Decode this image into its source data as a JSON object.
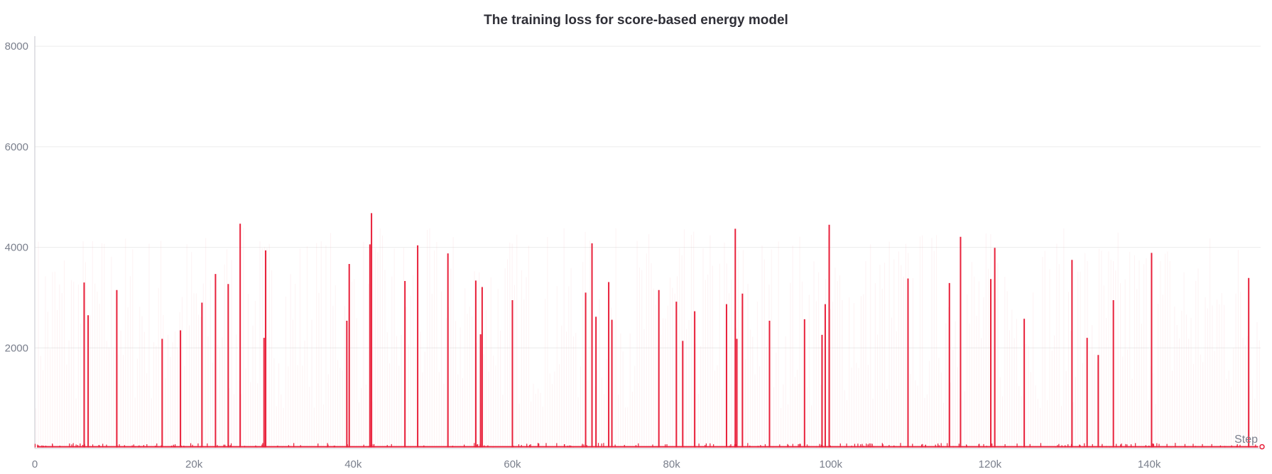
{
  "colors": {
    "series": "#e8203a",
    "grid": "#ececec",
    "axis": "#cfcfd4",
    "tick_text": "#7a7f8c",
    "title": "#2f2f37"
  },
  "chart_data": {
    "type": "line",
    "title": "The training loss for score-based energy model",
    "xlabel": "Step",
    "ylabel": "",
    "xlim": [
      0,
      154000
    ],
    "ylim": [
      0,
      8200
    ],
    "x_ticks": [
      0,
      20000,
      40000,
      60000,
      80000,
      100000,
      120000,
      140000
    ],
    "x_tick_labels": [
      "0",
      "20k",
      "40k",
      "60k",
      "80k",
      "100k",
      "120k",
      "140k"
    ],
    "y_ticks": [
      2000,
      4000,
      6000,
      8000
    ],
    "y_tick_labels": [
      "2000",
      "4000",
      "6000",
      "8000"
    ],
    "grid": true,
    "legend": "none",
    "baseline": 20,
    "series": [
      {
        "x": [
          6200,
          6700,
          10300,
          16000,
          18300,
          21000,
          22700,
          24300,
          25800,
          28800,
          29000,
          39200,
          39500,
          42100,
          42300,
          46500,
          48100,
          51900,
          55400,
          56000,
          56200,
          60000,
          69200,
          70000,
          70500,
          72100,
          72500,
          78400,
          80600,
          81400,
          82900,
          86900,
          88000,
          88200,
          88900,
          92300,
          96700,
          98900,
          99300,
          99800,
          109700,
          114900,
          116300,
          120100,
          120600,
          124300,
          130300,
          132200,
          133600,
          135500,
          140300,
          152500
        ],
        "y": [
          3300,
          2650,
          3150,
          2180,
          2350,
          2900,
          3470,
          3270,
          4470,
          2200,
          3940,
          2540,
          3670,
          4060,
          4680,
          3330,
          4040,
          3880,
          3340,
          2270,
          3210,
          2950,
          3100,
          4080,
          2620,
          3310,
          2560,
          3150,
          2920,
          2140,
          2730,
          2870,
          4370,
          2180,
          3080,
          2540,
          2570,
          2260,
          2870,
          4450,
          3380,
          3290,
          4210,
          3370,
          3990,
          2580,
          3750,
          2200,
          1860,
          2950,
          3890,
          3390
        ]
      }
    ]
  }
}
